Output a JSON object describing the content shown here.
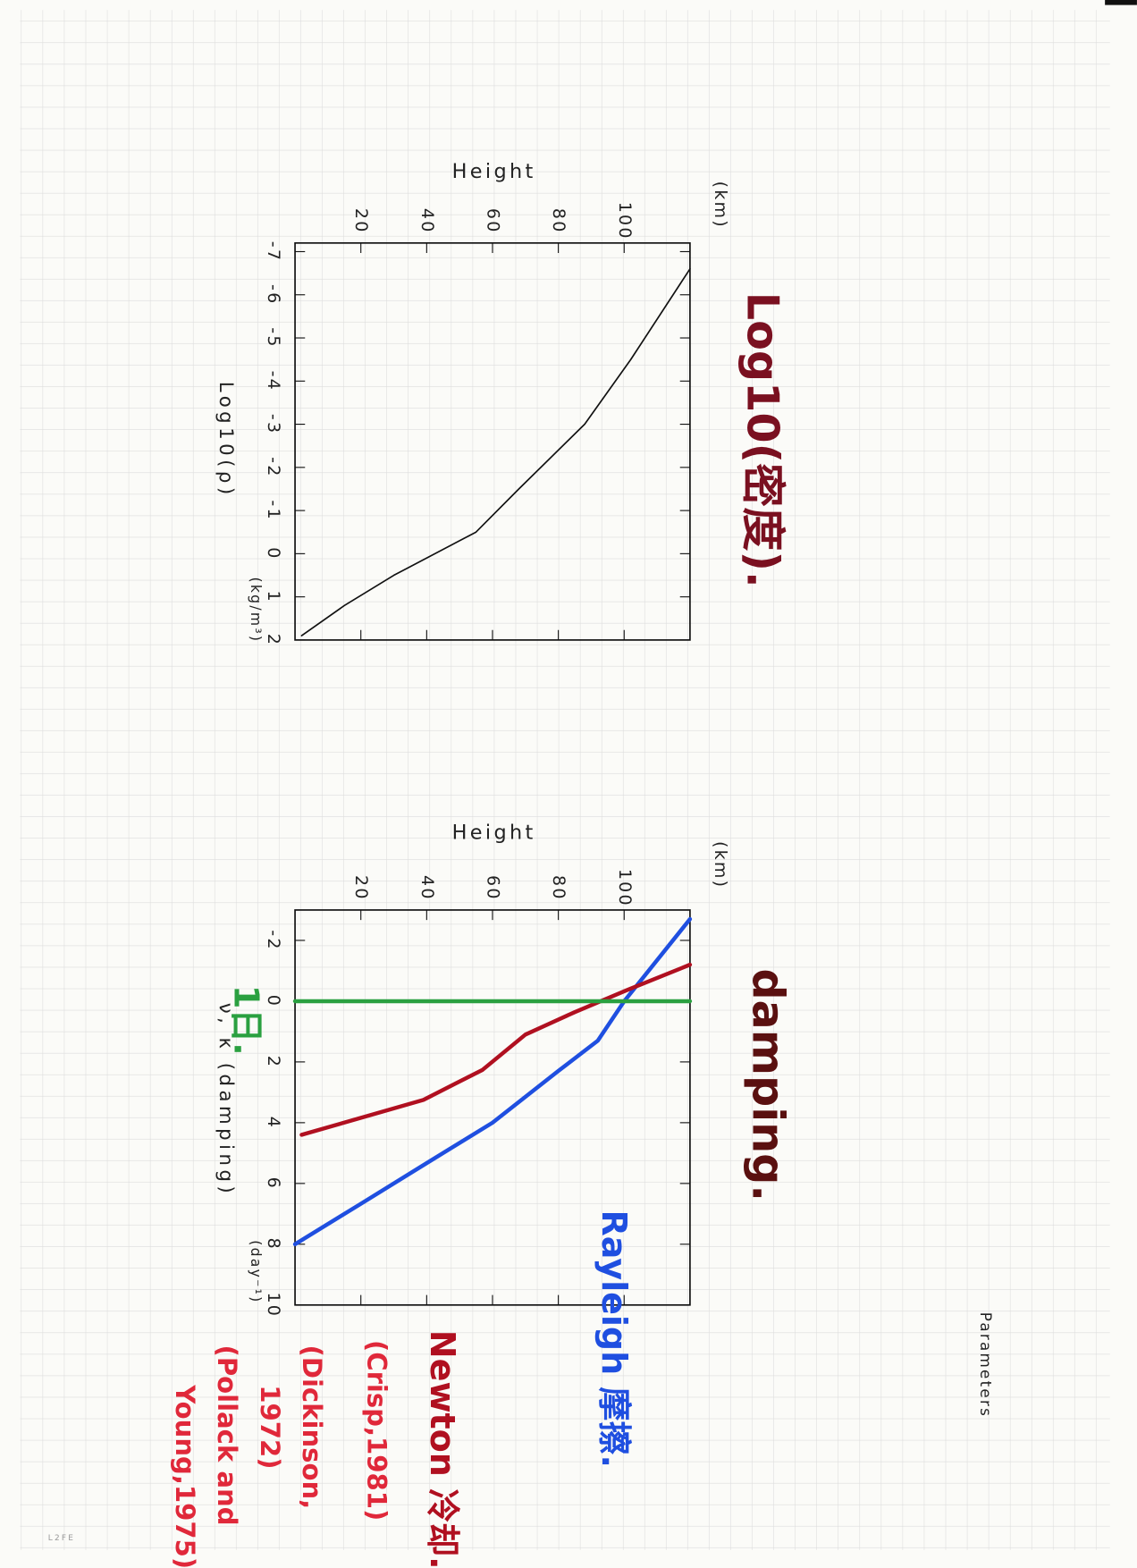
{
  "page_title": "Parameters",
  "stamp": "L2FE",
  "chart_data": [
    {
      "type": "line",
      "title": "Log10(密度).",
      "x_label": "Log10(ρ)",
      "x_unit": "(kg/m³)",
      "y_label": "Height",
      "y_unit": "(km)",
      "xlim": [
        -7.2,
        2
      ],
      "xticks": [
        -7,
        -6,
        -5,
        -4,
        -3,
        -2,
        -1,
        0,
        1,
        2
      ],
      "ylim": [
        0,
        120
      ],
      "yticks": [
        20,
        40,
        60,
        80,
        100
      ],
      "grid": false,
      "series": [
        {
          "color": "#111111",
          "x": [
            1.9,
            1.2,
            0.5,
            -0.5,
            -1.5,
            -3,
            -4.5,
            -6.6
          ],
          "y": [
            2,
            15,
            30,
            55,
            68,
            88,
            102,
            120
          ]
        }
      ]
    },
    {
      "type": "line",
      "title": "damping.",
      "x_label": "ν, κ (damping)",
      "x_unit": "(day⁻¹)",
      "y_label": "Height",
      "y_unit": "(km)",
      "xlim": [
        -3,
        10
      ],
      "xticks": [
        -2,
        0,
        2,
        4,
        6,
        8,
        10
      ],
      "ylim": [
        0,
        120
      ],
      "yticks": [
        20,
        40,
        60,
        80,
        100
      ],
      "grid": false,
      "series": [
        {
          "name": "Rayleigh 摩擦.",
          "color": "#1f4fe0",
          "x": [
            8,
            6.67,
            5.33,
            4,
            2.3,
            1.3,
            0,
            -2.7
          ],
          "y": [
            0,
            20,
            40,
            60,
            80,
            92,
            100,
            120
          ]
        },
        {
          "name": "Newton 冷却.",
          "color": "#b01020",
          "x": [
            4.4,
            3.25,
            2.26,
            1.1,
            0.36,
            -0.37,
            -1.2
          ],
          "y": [
            2,
            39,
            57,
            70,
            85,
            101,
            120
          ]
        },
        {
          "name": "1日.",
          "color": "#2aa040",
          "x": [
            0,
            0
          ],
          "y": [
            0,
            120
          ]
        }
      ],
      "annotations": [
        [
          "(Crisp,1981)"
        ],
        [
          "(Dickinson,",
          "1972)"
        ],
        [
          "(Pollack and",
          "Young,1975)"
        ]
      ]
    }
  ]
}
